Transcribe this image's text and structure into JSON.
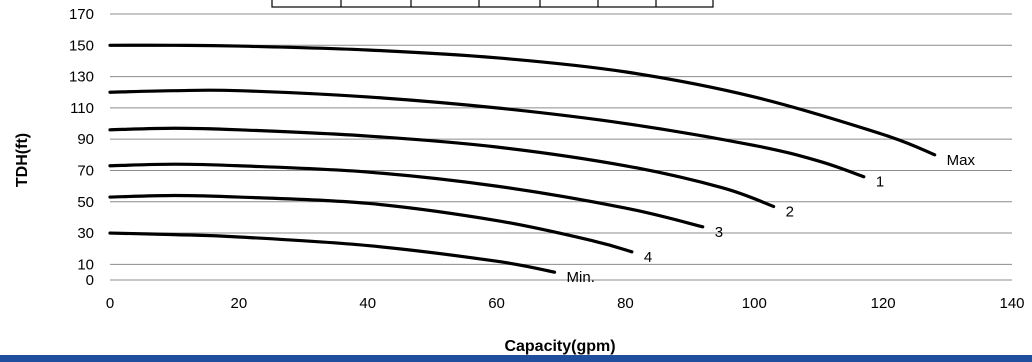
{
  "chart_data": {
    "type": "line",
    "xlabel": "Capacity(gpm)",
    "ylabel": "TDH(ft)",
    "xlim": [
      0,
      140
    ],
    "ylim": [
      0,
      170
    ],
    "x_ticks": [
      0,
      20,
      40,
      60,
      80,
      100,
      120,
      140
    ],
    "y_ticks": [
      0,
      10,
      30,
      50,
      70,
      90,
      110,
      130,
      150,
      170
    ],
    "grid": true,
    "series": [
      {
        "name": "Max",
        "x": [
          0,
          10,
          20,
          40,
          60,
          80,
          100,
          120,
          128
        ],
        "y": [
          150,
          150,
          149.5,
          147,
          142,
          133,
          117,
          93,
          80
        ]
      },
      {
        "name": "1",
        "x": [
          0,
          10,
          20,
          40,
          60,
          80,
          100,
          110,
          117
        ],
        "y": [
          120,
          121,
          121,
          117,
          110,
          100,
          86,
          76,
          66
        ]
      },
      {
        "name": "2",
        "x": [
          0,
          10,
          20,
          40,
          60,
          80,
          95,
          103
        ],
        "y": [
          96,
          97,
          96,
          92,
          85,
          73,
          59,
          47
        ]
      },
      {
        "name": "3",
        "x": [
          0,
          10,
          20,
          40,
          60,
          80,
          92
        ],
        "y": [
          73,
          74,
          73,
          69,
          60,
          46,
          34
        ]
      },
      {
        "name": "4",
        "x": [
          0,
          10,
          20,
          40,
          60,
          75,
          81
        ],
        "y": [
          53,
          54,
          53,
          49,
          38,
          25,
          18
        ]
      },
      {
        "name": "Min.",
        "x": [
          0,
          10,
          20,
          40,
          60,
          69
        ],
        "y": [
          30,
          29,
          27.5,
          22,
          12,
          5
        ]
      }
    ]
  }
}
